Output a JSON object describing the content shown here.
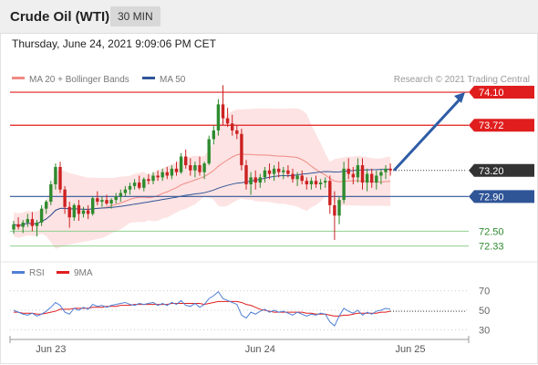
{
  "header": {
    "title": "Crude Oil (WTI)",
    "timeframe": "30 MIN"
  },
  "datetime": "Thursday, June 24, 2021 9:09:06 PM CET",
  "legend": [
    {
      "label": "MA 20 + Bollinger Bands",
      "color": "#f08a84"
    },
    {
      "label": "MA 50",
      "color": "#2f5597"
    }
  ],
  "credit": "Research © 2021 Trading Central",
  "levels": [
    {
      "label": "74.10",
      "value": 74.1,
      "kind": "resistance"
    },
    {
      "label": "73.72",
      "value": 73.72,
      "kind": "resistance"
    },
    {
      "label": "73.20",
      "value": 73.2,
      "kind": "current"
    },
    {
      "label": "72.90",
      "value": 72.9,
      "kind": "pivot"
    },
    {
      "label": "72.50",
      "value": 72.5,
      "kind": "support"
    },
    {
      "label": "72.33",
      "value": 72.33,
      "kind": "support"
    }
  ],
  "rsi_legend": [
    {
      "label": "RSI",
      "color": "#4f7fd6"
    },
    {
      "label": "9MA",
      "color": "#e01e1e"
    }
  ],
  "rsi_ticks": [
    {
      "label": "70",
      "value": 70
    },
    {
      "label": "50",
      "value": 50
    },
    {
      "label": "30",
      "value": 30
    }
  ],
  "x_labels": [
    {
      "label": "Jun 23",
      "index": 8
    },
    {
      "label": "Jun 24",
      "index": 53
    },
    {
      "label": "Jun 25",
      "index": 98
    }
  ],
  "colors": {
    "resistance": "#e01e1e",
    "pivot": "#2f5597",
    "support": "#2e8b2e",
    "current": "#333333",
    "up": "#2e8b2e",
    "down": "#cc2222",
    "band": "#fde0e0",
    "ma20": "#f08a84",
    "ma50": "#2f5597",
    "arrow": "#2e5da6"
  },
  "chart_data": {
    "type": "candlestick",
    "price_range": [
      72.2,
      74.3
    ],
    "rsi_range": [
      20,
      80
    ],
    "candles": [
      [
        72.52,
        72.62,
        72.47,
        72.58
      ],
      [
        72.58,
        72.66,
        72.52,
        72.55
      ],
      [
        72.55,
        72.63,
        72.48,
        72.6
      ],
      [
        72.6,
        72.7,
        72.55,
        72.64
      ],
      [
        72.64,
        72.72,
        72.5,
        72.56
      ],
      [
        72.56,
        72.63,
        72.44,
        72.6
      ],
      [
        72.6,
        72.8,
        72.56,
        72.76
      ],
      [
        72.76,
        72.86,
        72.7,
        72.84
      ],
      [
        72.84,
        73.08,
        72.8,
        73.04
      ],
      [
        73.04,
        73.28,
        72.98,
        73.24
      ],
      [
        73.24,
        73.3,
        72.94,
        72.98
      ],
      [
        72.98,
        73.02,
        72.7,
        72.78
      ],
      [
        72.78,
        72.84,
        72.54,
        72.66
      ],
      [
        72.66,
        72.82,
        72.62,
        72.8
      ],
      [
        72.8,
        72.86,
        72.62,
        72.7
      ],
      [
        72.7,
        72.78,
        72.66,
        72.74
      ],
      [
        72.74,
        72.8,
        72.64,
        72.7
      ],
      [
        72.7,
        72.9,
        72.68,
        72.88
      ],
      [
        72.88,
        72.96,
        72.8,
        72.84
      ],
      [
        72.84,
        72.9,
        72.78,
        72.86
      ],
      [
        72.86,
        72.92,
        72.8,
        72.82
      ],
      [
        72.82,
        72.88,
        72.76,
        72.86
      ],
      [
        72.86,
        72.94,
        72.82,
        72.9
      ],
      [
        72.9,
        72.98,
        72.84,
        72.94
      ],
      [
        72.94,
        73.02,
        72.9,
        72.98
      ],
      [
        72.98,
        73.06,
        72.92,
        73.02
      ],
      [
        73.02,
        73.1,
        72.98,
        73.06
      ],
      [
        73.06,
        73.14,
        72.98,
        73.0
      ],
      [
        73.0,
        73.12,
        72.96,
        73.1
      ],
      [
        73.1,
        73.16,
        73.04,
        73.08
      ],
      [
        73.08,
        73.18,
        73.04,
        73.14
      ],
      [
        73.14,
        73.2,
        73.08,
        73.12
      ],
      [
        73.12,
        73.22,
        73.08,
        73.18
      ],
      [
        73.18,
        73.24,
        73.1,
        73.14
      ],
      [
        73.14,
        73.26,
        73.1,
        73.22
      ],
      [
        73.22,
        73.3,
        73.14,
        73.18
      ],
      [
        73.18,
        73.4,
        73.16,
        73.36
      ],
      [
        73.36,
        73.44,
        73.22,
        73.26
      ],
      [
        73.26,
        73.34,
        73.14,
        73.2
      ],
      [
        73.2,
        73.3,
        73.12,
        73.26
      ],
      [
        73.26,
        73.36,
        73.14,
        73.18
      ],
      [
        73.18,
        73.3,
        73.1,
        73.28
      ],
      [
        73.28,
        73.6,
        73.26,
        73.56
      ],
      [
        73.56,
        73.72,
        73.5,
        73.66
      ],
      [
        73.66,
        74.02,
        73.6,
        73.96
      ],
      [
        73.96,
        74.18,
        73.72,
        73.8
      ],
      [
        73.8,
        73.92,
        73.7,
        73.74
      ],
      [
        73.74,
        73.84,
        73.6,
        73.66
      ],
      [
        73.66,
        73.72,
        73.56,
        73.62
      ],
      [
        73.62,
        73.68,
        73.2,
        73.26
      ],
      [
        73.26,
        73.32,
        72.98,
        73.04
      ],
      [
        73.04,
        73.18,
        72.92,
        73.12
      ],
      [
        73.12,
        73.2,
        72.98,
        73.06
      ],
      [
        73.06,
        73.16,
        73.0,
        73.12
      ],
      [
        73.12,
        73.24,
        73.06,
        73.2
      ],
      [
        73.2,
        73.28,
        73.1,
        73.16
      ],
      [
        73.16,
        73.26,
        73.08,
        73.22
      ],
      [
        73.22,
        73.3,
        73.12,
        73.18
      ],
      [
        73.18,
        73.24,
        73.1,
        73.2
      ],
      [
        73.2,
        73.26,
        73.12,
        73.16
      ],
      [
        73.16,
        73.22,
        73.06,
        73.1
      ],
      [
        73.1,
        73.18,
        73.02,
        73.14
      ],
      [
        73.14,
        73.2,
        73.04,
        73.08
      ],
      [
        73.08,
        73.12,
        72.98,
        73.04
      ],
      [
        73.04,
        73.12,
        72.98,
        73.08
      ],
      [
        73.08,
        73.14,
        73.0,
        73.04
      ],
      [
        73.04,
        73.1,
        72.98,
        73.06
      ],
      [
        73.06,
        73.12,
        73.0,
        73.08
      ],
      [
        73.08,
        73.14,
        72.7,
        72.8
      ],
      [
        72.8,
        72.96,
        72.4,
        72.68
      ],
      [
        72.68,
        72.9,
        72.58,
        72.86
      ],
      [
        72.86,
        73.3,
        72.82,
        73.22
      ],
      [
        73.22,
        73.34,
        73.1,
        73.16
      ],
      [
        73.16,
        73.24,
        73.04,
        73.12
      ],
      [
        73.12,
        73.34,
        73.06,
        73.26
      ],
      [
        73.26,
        73.34,
        72.98,
        73.06
      ],
      [
        73.06,
        73.22,
        72.96,
        73.16
      ],
      [
        73.16,
        73.22,
        73.0,
        73.06
      ],
      [
        73.06,
        73.2,
        72.98,
        73.14
      ],
      [
        73.14,
        73.22,
        73.04,
        73.18
      ],
      [
        73.18,
        73.26,
        73.1,
        73.22
      ],
      [
        73.22,
        73.28,
        73.14,
        73.2
      ]
    ],
    "rsi": [
      50,
      48,
      46,
      45,
      47,
      44,
      46,
      49,
      53,
      58,
      55,
      48,
      46,
      52,
      50,
      53,
      51,
      56,
      54,
      55,
      53,
      55,
      56,
      57,
      58,
      56,
      55,
      57,
      56,
      57,
      58,
      55,
      57,
      55,
      58,
      56,
      60,
      55,
      54,
      57,
      53,
      56,
      62,
      65,
      69,
      62,
      60,
      58,
      56,
      45,
      42,
      48,
      46,
      49,
      51,
      48,
      50,
      48,
      49,
      47,
      45,
      48,
      46,
      44,
      46,
      45,
      47,
      46,
      38,
      34,
      44,
      52,
      49,
      47,
      50,
      45,
      48,
      46,
      49,
      50,
      52,
      51
    ],
    "rsi_ma": [
      48,
      48,
      47,
      47,
      47,
      46,
      46,
      47,
      48,
      49,
      51,
      51,
      51,
      52,
      52,
      52,
      52,
      53,
      53,
      53,
      54,
      54,
      54,
      55,
      55,
      55,
      56,
      56,
      56,
      56,
      56,
      56,
      56,
      56,
      57,
      57,
      57,
      57,
      57,
      57,
      57,
      56,
      57,
      58,
      59,
      59,
      59,
      59,
      59,
      58,
      56,
      55,
      53,
      51,
      50,
      49,
      48,
      48,
      48,
      48,
      48,
      48,
      48,
      47,
      47,
      46,
      46,
      46,
      45,
      44,
      44,
      45,
      45,
      46,
      47,
      47,
      47,
      47,
      47,
      48,
      48,
      49
    ],
    "projection": {
      "target": 74.1,
      "from": 73.2
    }
  }
}
